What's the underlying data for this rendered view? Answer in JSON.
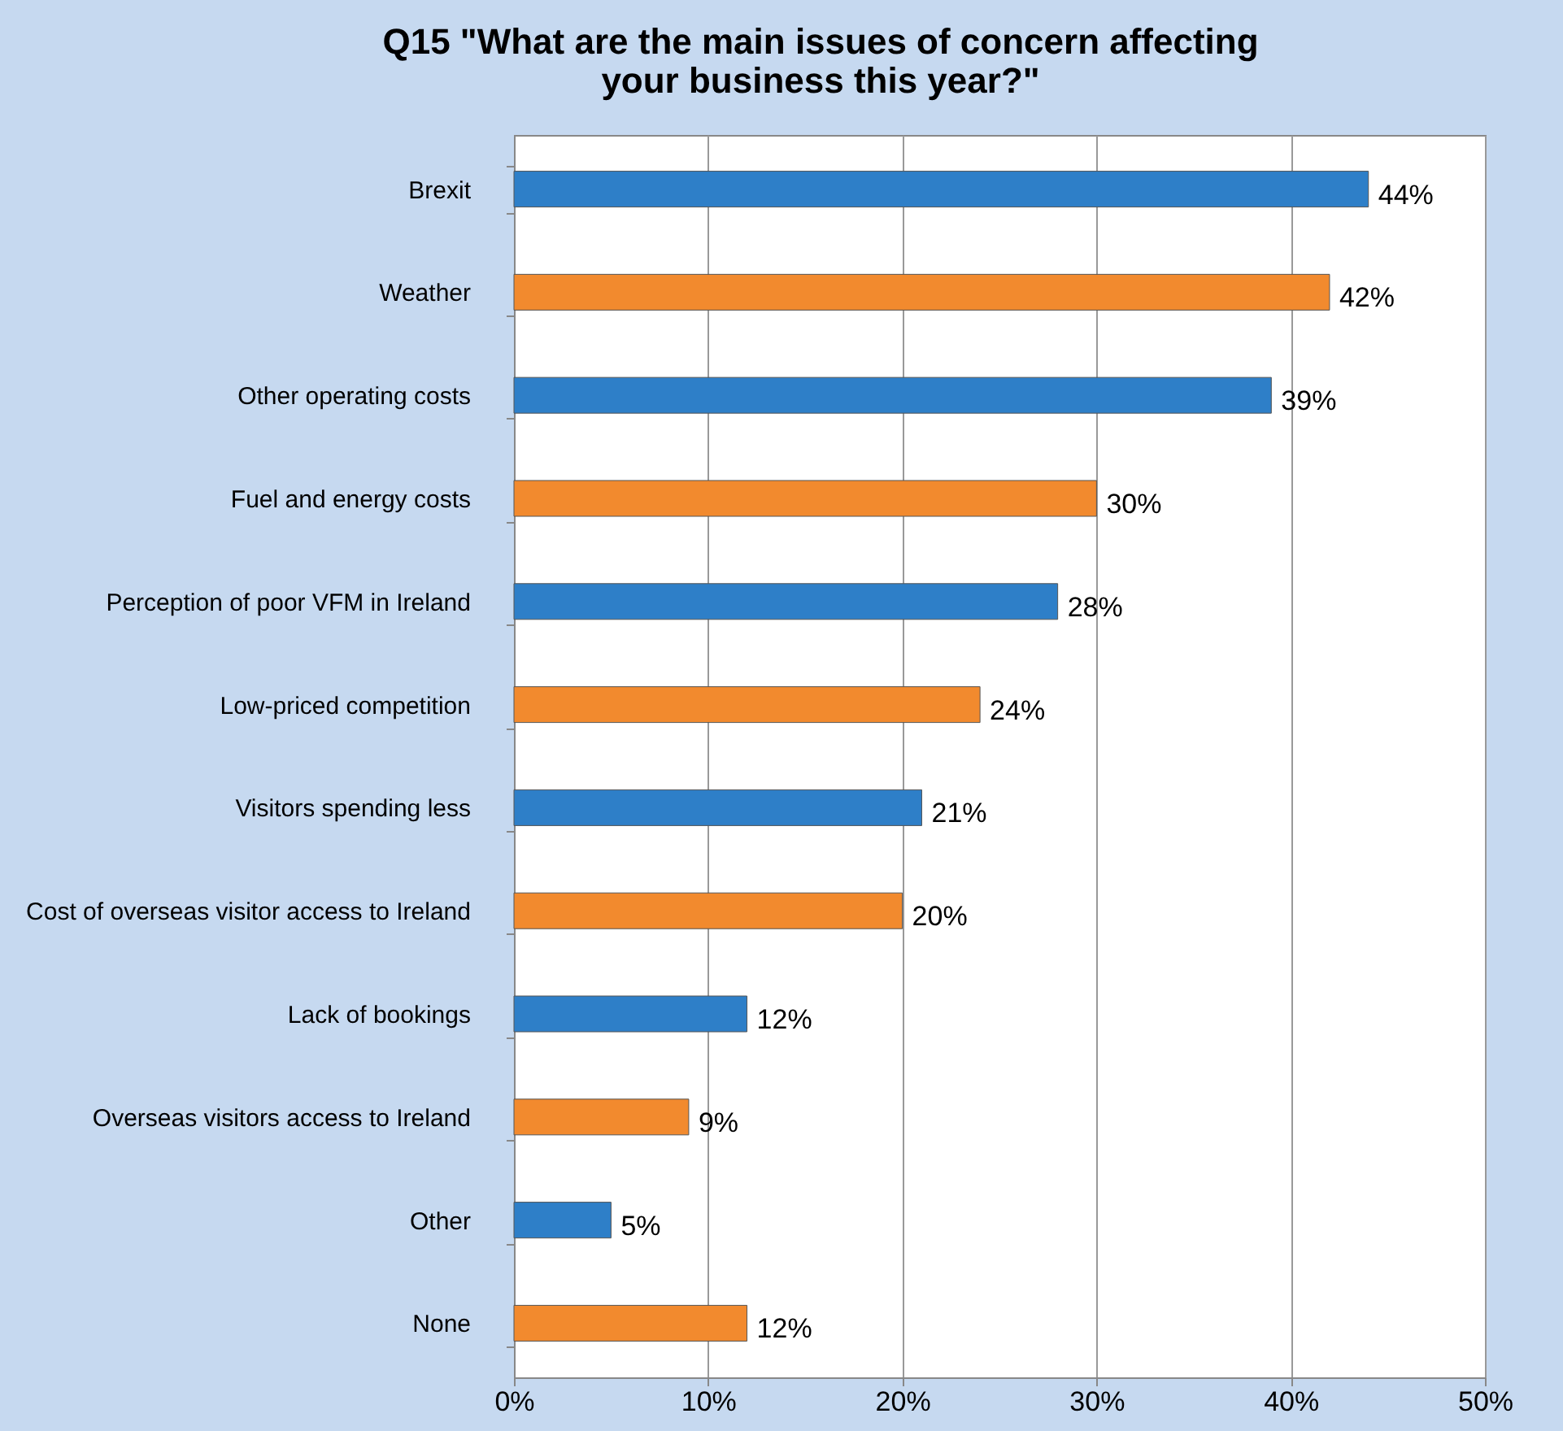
{
  "chart_data": {
    "type": "bar",
    "orientation": "horizontal",
    "title": "Q15 \"What are the main issues of concern affecting your business this year?\"",
    "categories": [
      "Brexit",
      "Weather",
      "Other operating costs",
      "Fuel and energy costs",
      "Perception of poor VFM in Ireland",
      "Low-priced competition",
      "Visitors spending less",
      "Cost of overseas visitor access to Ireland",
      "Lack of bookings",
      "Overseas visitors access to Ireland",
      "Other",
      "None"
    ],
    "values": [
      44,
      42,
      39,
      30,
      28,
      24,
      21,
      20,
      12,
      9,
      5,
      12
    ],
    "value_labels": [
      "44%",
      "42%",
      "39%",
      "30%",
      "28%",
      "24%",
      "21%",
      "20%",
      "12%",
      "9%",
      "5%",
      "12%"
    ],
    "colors": [
      "#2e7fc8",
      "#f28a2e",
      "#2e7fc8",
      "#f28a2e",
      "#2e7fc8",
      "#f28a2e",
      "#2e7fc8",
      "#f28a2e",
      "#2e7fc8",
      "#f28a2e",
      "#2e7fc8",
      "#f28a2e"
    ],
    "xlim": [
      0,
      50
    ],
    "xticks": [
      {
        "value": 0,
        "label": "0%"
      },
      {
        "value": 10,
        "label": "10%"
      },
      {
        "value": 20,
        "label": "20%"
      },
      {
        "value": 30,
        "label": "30%"
      },
      {
        "value": 40,
        "label": "40%"
      },
      {
        "value": 50,
        "label": "50%"
      }
    ],
    "grid": "x"
  }
}
